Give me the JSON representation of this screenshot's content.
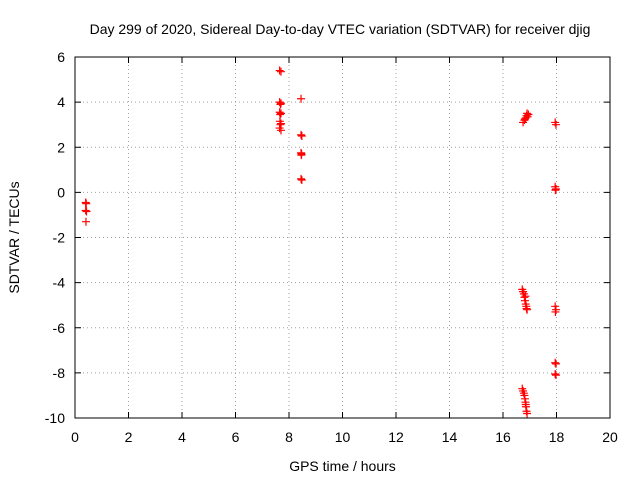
{
  "chart_data": {
    "type": "scatter",
    "title": "Day 299 of 2020, Sidereal Day-to-day VTEC variation (SDTVAR) for receiver djig",
    "xlabel": "GPS time / hours",
    "ylabel": "SDTVAR / TECUs",
    "xlim": [
      0,
      20
    ],
    "ylim": [
      -10,
      6
    ],
    "xticks": [
      0,
      2,
      4,
      6,
      8,
      10,
      12,
      14,
      16,
      18,
      20
    ],
    "yticks": [
      -10,
      -8,
      -6,
      -4,
      -2,
      0,
      2,
      4,
      6
    ],
    "grid": true,
    "marker": "+",
    "color": "#ff0000",
    "series": [
      {
        "name": "SDTVAR",
        "points": [
          [
            0.4,
            -0.45
          ],
          [
            0.42,
            -0.5
          ],
          [
            0.4,
            -0.8
          ],
          [
            0.43,
            -0.85
          ],
          [
            0.41,
            -1.3
          ],
          [
            7.65,
            5.4
          ],
          [
            7.7,
            5.35
          ],
          [
            7.65,
            4.0
          ],
          [
            7.7,
            3.95
          ],
          [
            7.68,
            3.9
          ],
          [
            7.65,
            3.55
          ],
          [
            7.7,
            3.5
          ],
          [
            7.67,
            3.45
          ],
          [
            7.66,
            3.15
          ],
          [
            7.7,
            3.05
          ],
          [
            7.68,
            3.0
          ],
          [
            7.65,
            2.85
          ],
          [
            7.7,
            2.75
          ],
          [
            8.45,
            4.15
          ],
          [
            8.45,
            2.55
          ],
          [
            8.48,
            2.5
          ],
          [
            8.45,
            1.75
          ],
          [
            8.47,
            1.7
          ],
          [
            8.46,
            1.65
          ],
          [
            8.45,
            0.6
          ],
          [
            8.48,
            0.55
          ],
          [
            16.75,
            3.1
          ],
          [
            16.8,
            3.2
          ],
          [
            16.85,
            3.3
          ],
          [
            16.88,
            3.4
          ],
          [
            16.9,
            3.5
          ],
          [
            16.95,
            3.45
          ],
          [
            16.82,
            3.25
          ],
          [
            16.92,
            3.35
          ],
          [
            17.95,
            3.1
          ],
          [
            17.98,
            3.0
          ],
          [
            17.95,
            0.25
          ],
          [
            17.98,
            0.15
          ],
          [
            17.96,
            0.1
          ],
          [
            16.72,
            -4.3
          ],
          [
            16.75,
            -4.4
          ],
          [
            16.78,
            -4.5
          ],
          [
            16.8,
            -4.65
          ],
          [
            16.82,
            -4.8
          ],
          [
            16.85,
            -4.95
          ],
          [
            16.87,
            -5.05
          ],
          [
            16.88,
            -5.15
          ],
          [
            16.9,
            -5.2
          ],
          [
            16.84,
            -4.6
          ],
          [
            17.95,
            -5.05
          ],
          [
            17.98,
            -5.2
          ],
          [
            17.96,
            -5.3
          ],
          [
            17.95,
            -7.55
          ],
          [
            17.98,
            -7.6
          ],
          [
            17.95,
            -8.05
          ],
          [
            17.98,
            -8.1
          ],
          [
            16.72,
            -8.7
          ],
          [
            16.75,
            -8.8
          ],
          [
            16.78,
            -8.9
          ],
          [
            16.8,
            -9.0
          ],
          [
            16.82,
            -9.15
          ],
          [
            16.84,
            -9.3
          ],
          [
            16.86,
            -9.5
          ],
          [
            16.88,
            -9.7
          ],
          [
            16.9,
            -9.8
          ],
          [
            16.85,
            -9.4
          ]
        ]
      }
    ]
  }
}
